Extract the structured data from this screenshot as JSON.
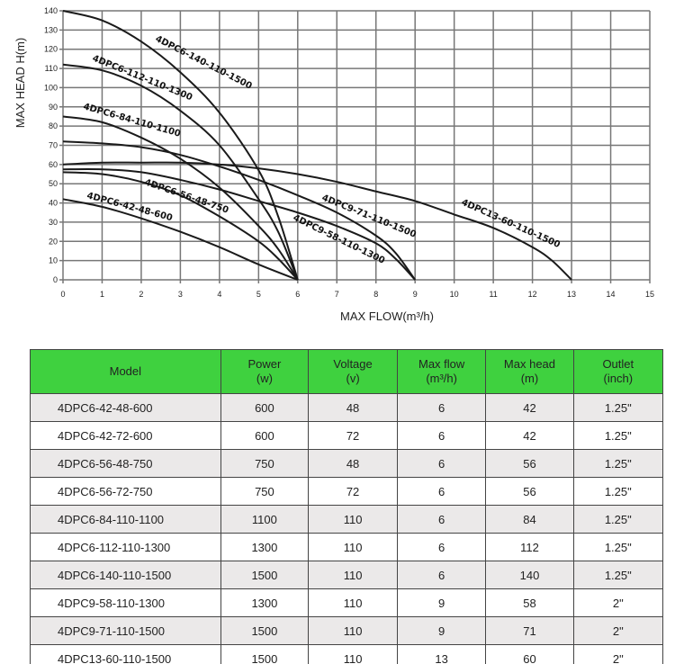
{
  "chart_data": {
    "type": "line",
    "xlabel": "MAX FLOW(m³/h)",
    "ylabel": "MAX HEAD H(m)",
    "xlim": [
      0,
      15
    ],
    "ylim": [
      0,
      140
    ],
    "xticks": [
      "0",
      "1",
      "2",
      "3",
      "4",
      "5",
      "6",
      "7",
      "8",
      "9",
      "10",
      "11",
      "12",
      "13",
      "14",
      "15"
    ],
    "yticks": [
      "0",
      "10",
      "20",
      "30",
      "40",
      "50",
      "60",
      "70",
      "80",
      "90",
      "100",
      "110",
      "120",
      "130",
      "140"
    ],
    "grid": true,
    "series": [
      {
        "name": "4DPC6-140-110-1500",
        "x": [
          0,
          1,
          2,
          3,
          4,
          5,
          5.5,
          6
        ],
        "y": [
          140,
          135,
          124,
          108,
          87,
          57,
          33,
          0
        ]
      },
      {
        "name": "4DPC6-112-110-1300",
        "x": [
          0,
          1,
          2,
          3,
          4,
          5,
          5.5,
          6
        ],
        "y": [
          112,
          109,
          101,
          88,
          70,
          42,
          25,
          0
        ]
      },
      {
        "name": "4DPC6-84-110-1100",
        "x": [
          0,
          1,
          2,
          3,
          4,
          5,
          5.5,
          6
        ],
        "y": [
          85,
          82,
          74,
          63,
          48,
          28,
          16,
          0
        ]
      },
      {
        "name": "4DPC9-71-110-1500",
        "x": [
          0,
          1,
          2,
          3,
          4,
          5,
          6,
          7,
          8,
          8.5,
          9
        ],
        "y": [
          72,
          71,
          69,
          65,
          59,
          52,
          44,
          35,
          23,
          14,
          0
        ]
      },
      {
        "name": "4DPC13-60-110-1500",
        "x": [
          0,
          1,
          2,
          3,
          4,
          5,
          6,
          7,
          8,
          9,
          10,
          11,
          12,
          12.5,
          13
        ],
        "y": [
          60,
          61,
          61,
          61,
          60,
          58,
          55,
          51,
          46,
          41,
          34,
          27,
          17,
          10,
          0
        ]
      },
      {
        "name": "4DPC9-58-110-1300",
        "x": [
          0,
          1,
          2,
          3,
          4,
          5,
          6,
          7,
          8,
          8.5,
          9
        ],
        "y": [
          57.5,
          57.5,
          56,
          52,
          47,
          41,
          35,
          28,
          19,
          11,
          0
        ]
      },
      {
        "name": "4DPC6-56-48-750",
        "x": [
          0,
          1,
          2,
          3,
          4,
          5,
          5.5,
          6
        ],
        "y": [
          56,
          55,
          51,
          44,
          33,
          20,
          11,
          0
        ]
      },
      {
        "name": "4DPC6-42-48-600",
        "x": [
          0,
          1,
          2,
          3,
          4,
          5,
          6
        ],
        "y": [
          42,
          38,
          32,
          25,
          17,
          8,
          0
        ]
      }
    ]
  },
  "table": {
    "headers": [
      {
        "l1": "Model",
        "l2": ""
      },
      {
        "l1": "Power",
        "l2": "(w)"
      },
      {
        "l1": "Voltage",
        "l2": "(v)"
      },
      {
        "l1": "Max flow",
        "l2": "(m³/h)"
      },
      {
        "l1": "Max head",
        "l2": "(m)"
      },
      {
        "l1": "Outlet",
        "l2": "(inch)"
      }
    ],
    "rows": [
      [
        "4DPC6-42-48-600",
        "600",
        "48",
        "6",
        "42",
        "1.25\""
      ],
      [
        "4DPC6-42-72-600",
        "600",
        "72",
        "6",
        "42",
        "1.25\""
      ],
      [
        "4DPC6-56-48-750",
        "750",
        "48",
        "6",
        "56",
        "1.25\""
      ],
      [
        "4DPC6-56-72-750",
        "750",
        "72",
        "6",
        "56",
        "1.25\""
      ],
      [
        "4DPC6-84-110-1100",
        "1100",
        "110",
        "6",
        "84",
        "1.25\""
      ],
      [
        "4DPC6-112-110-1300",
        "1300",
        "110",
        "6",
        "112",
        "1.25\""
      ],
      [
        "4DPC6-140-110-1500",
        "1500",
        "110",
        "6",
        "140",
        "1.25\""
      ],
      [
        "4DPC9-58-110-1300",
        "1300",
        "110",
        "9",
        "58",
        "2\""
      ],
      [
        "4DPC9-71-110-1500",
        "1500",
        "110",
        "9",
        "71",
        "2\""
      ],
      [
        "4DPC13-60-110-1500",
        "1500",
        "110",
        "13",
        "60",
        "2\""
      ]
    ],
    "header_color": "#3fd13f",
    "stripe_color": "#ebe9e9"
  }
}
